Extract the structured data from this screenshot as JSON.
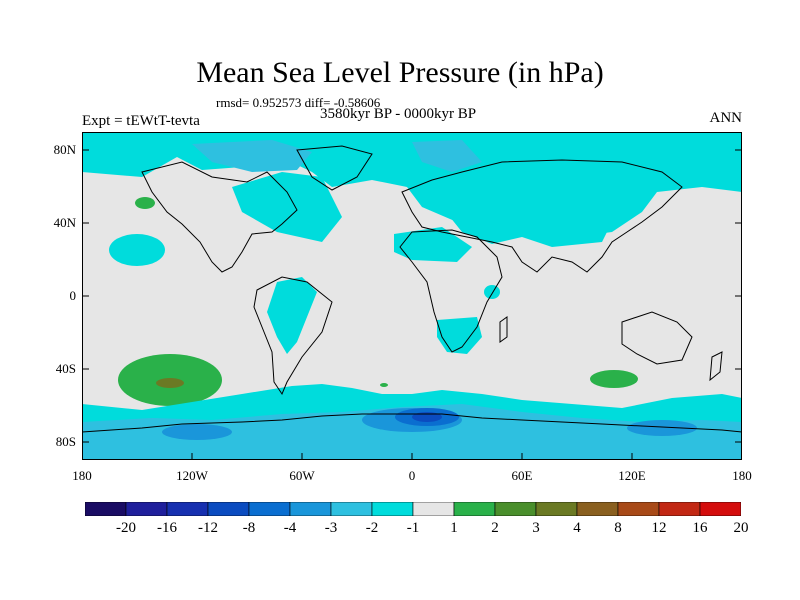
{
  "title": "Mean Sea Level Pressure (in hPa)",
  "stats": "rmsd= 0.952573  diff= -0.58606",
  "period": "3580kyr BP - 0000kyr BP",
  "experiment": "Expt = tEWtT-tevta",
  "season": "ANN",
  "lat_labels": [
    "80N",
    "40N",
    "0",
    "40S",
    "80S"
  ],
  "lon_labels": [
    "180",
    "120W",
    "60W",
    "0",
    "60E",
    "120E",
    "180"
  ],
  "colorbar": {
    "labels": [
      "-20",
      "-16",
      "-12",
      "-8",
      "-4",
      "-3",
      "-2",
      "-1",
      "1",
      "2",
      "3",
      "4",
      "8",
      "12",
      "16",
      "20"
    ],
    "colors": [
      "#1a0c64",
      "#1f1f9c",
      "#1730b0",
      "#0b4cc0",
      "#0a6ed0",
      "#1a96da",
      "#2ec0e0",
      "#00dcdc",
      "#e6e6e6",
      "#2ab14a",
      "#4a8f2c",
      "#6b7a24",
      "#8a6020",
      "#a84a18",
      "#c22814",
      "#d40d0d"
    ]
  },
  "colors": {
    "neutral": "#e6e6e6",
    "cyan": "#00dcdc",
    "lightblue": "#2ec0e0",
    "midblue": "#1a96da",
    "blue": "#0a6ed0",
    "deepblue": "#0b4cc0",
    "green": "#2ab14a",
    "darkgreen": "#6b7a24"
  }
}
